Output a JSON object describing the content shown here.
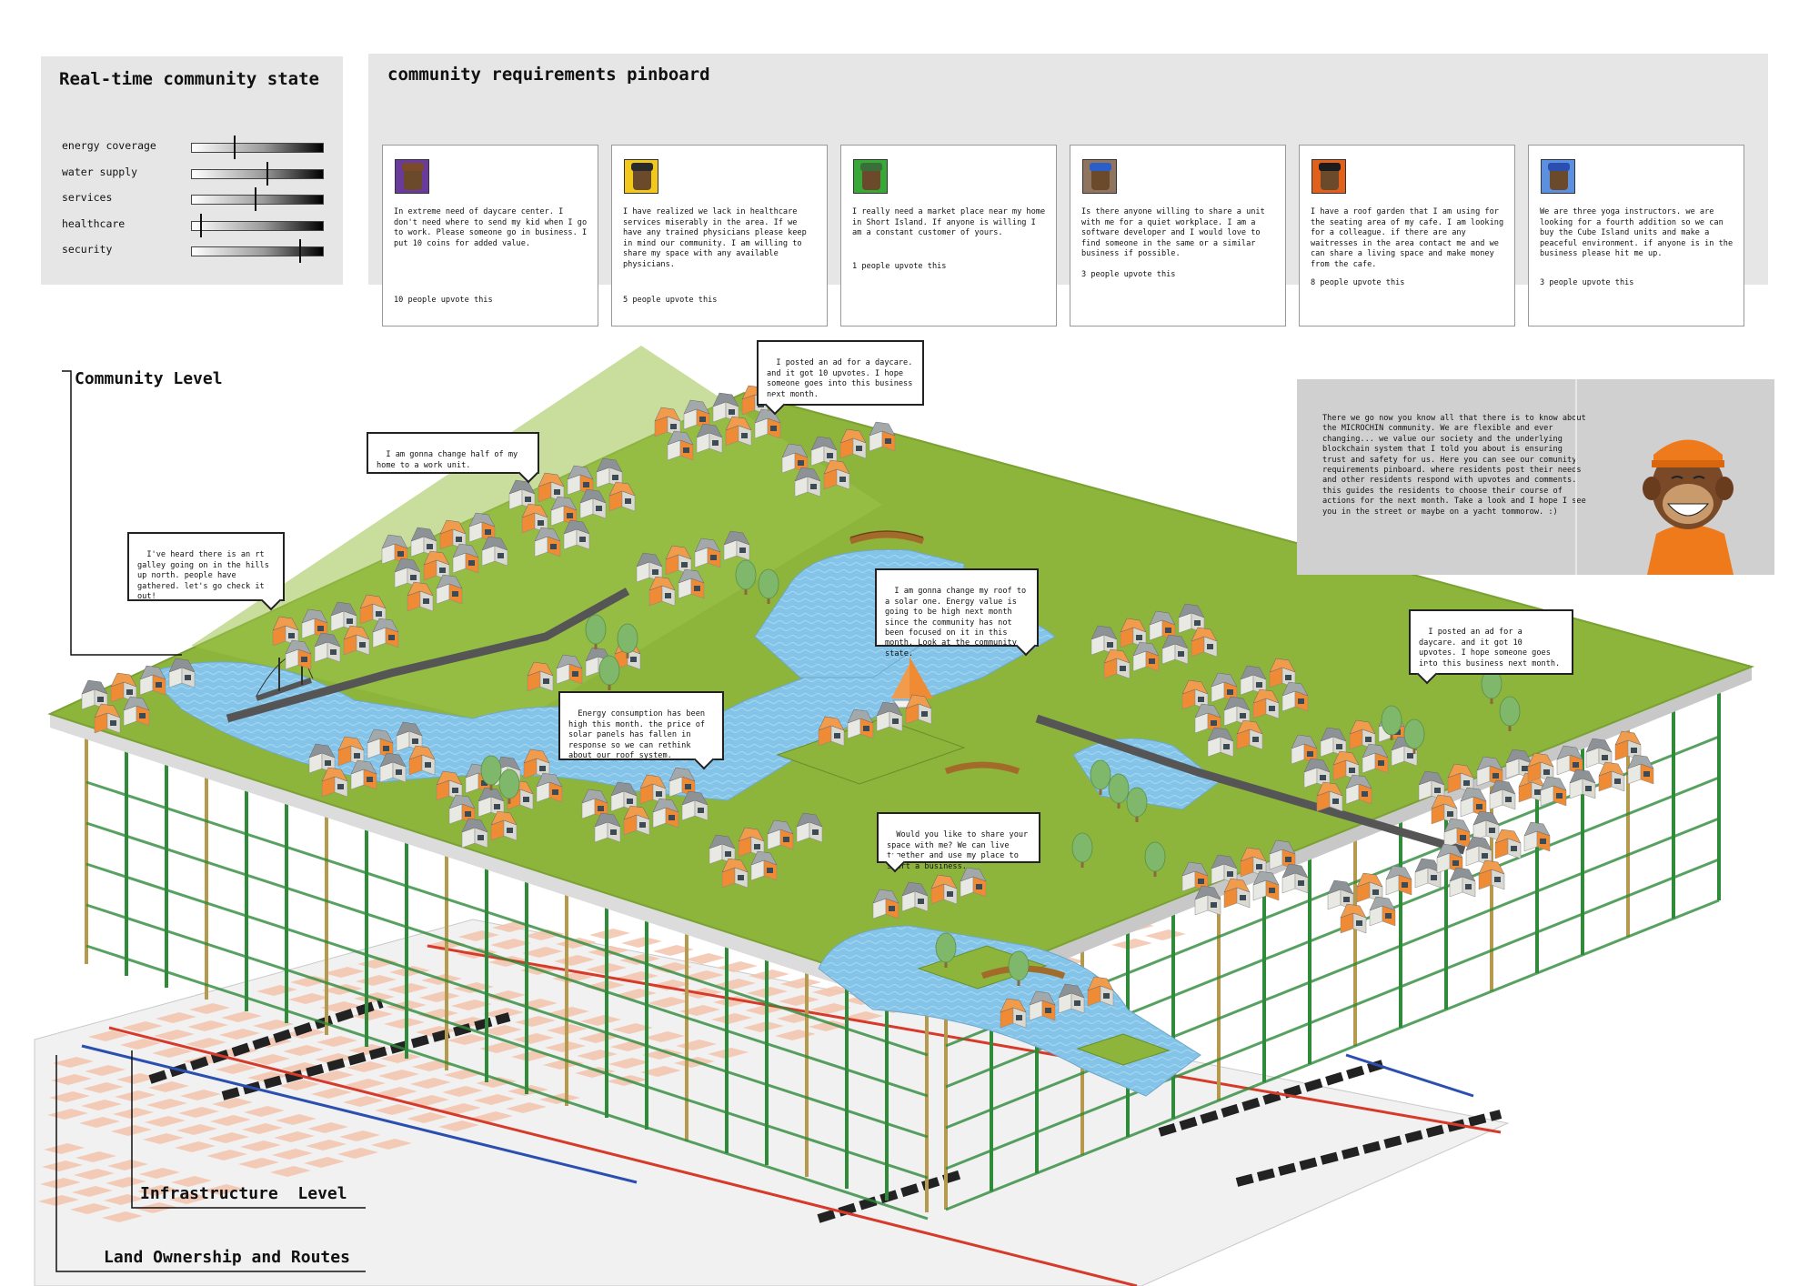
{
  "state_panel": {
    "title": "Real-time community state",
    "meters": [
      {
        "label": "energy coverage",
        "value": 0.32
      },
      {
        "label": "water supply",
        "value": 0.57
      },
      {
        "label": "services",
        "value": 0.48
      },
      {
        "label": "healthcare",
        "value": 0.06
      },
      {
        "label": "security",
        "value": 0.82
      }
    ]
  },
  "pinboard": {
    "title": "community requirements pinboard",
    "cards": [
      {
        "avatar": "ape-avatar-purple",
        "bg": "#6a3a9c",
        "hat": "#7a4a2a",
        "text": "In extreme need of daycare center. I don't need where to send my kid when I go to work. Please someone go in business. I put 10 coins for added value.",
        "votes": "10 people upvote this"
      },
      {
        "avatar": "ape-avatar-yellow",
        "bg": "#f2c81c",
        "hat": "#2b2b2b",
        "text": "I have realized we lack in healthcare services miserably in the area. If we have any trained physicians please keep in mind our community. I am willing to share my space with any available physicians.",
        "votes": "5 people upvote this"
      },
      {
        "avatar": "ape-avatar-green",
        "bg": "#38a838",
        "hat": "#3a6e3a",
        "text": "I really need a market place near my home in Short Island. If anyone is willing I am a constant customer of yours.",
        "votes": "1 people upvote this"
      },
      {
        "avatar": "ape-avatar-brown",
        "bg": "#8f7560",
        "hat": "#2a5ec8",
        "text": "Is there anyone willing to share a unit with me for a quiet workplace. I am a software developer and I would love to find someone in the same or a similar business if possible.",
        "votes": "3 people upvote this"
      },
      {
        "avatar": "ape-avatar-orange",
        "bg": "#e0601c",
        "hat": "#1c1c1c",
        "text": "I have a roof garden that I am using for the seating area of my cafe. I am looking for a colleague. if there are any waitresses in the area contact me and we can share a living space and make money from the cafe.",
        "votes": "8 people upvote this"
      },
      {
        "avatar": "ape-avatar-blue",
        "bg": "#5b8fe0",
        "hat": "#2a4fb0",
        "text": "We are three yoga instructors. we are looking for a fourth addition so we can buy the Cube Island units and make a peaceful environment. if anyone is in the business please hit me up.",
        "votes": "3 people upvote this"
      }
    ]
  },
  "levels": {
    "community": "Community Level",
    "infrastructure": "Infrastructure  Level",
    "land": "Land Ownership and Routes"
  },
  "bubbles": [
    {
      "text": "I posted an ad for a daycare. and it got 10 upvotes. I hope someone goes into this business next month."
    },
    {
      "text": "I am gonna change half of my home to a work unit."
    },
    {
      "text": "I've heard there is an rt galley going on in the hills up north. people have gathered. let's go check it out!"
    },
    {
      "text": "I am gonna change my roof to a solar one. Energy value is going to be high next month since the community has not been focused on it in this month. Look at the community state."
    },
    {
      "text": "Energy consumption has been high this month. the price of solar panels has fallen in response so we can rethink about our roof system."
    },
    {
      "text": "I posted an ad for a daycare. and it got 10 upvotes. I hope someone goes into this business next month."
    },
    {
      "text": "Would you like to share your space with me? We can live together and use my place to start a business."
    }
  ],
  "info": {
    "text": "There we go now you know all that there is to know about the MICROCHIN community. We are flexible and ever changing... we value our society and the underlying blockchain system that I told you about is ensuring trust and safety for us. Here you can see our comunity requirements pinboard. where residents post their needs and other residents respond with upvotes and comments. this guides the residents to choose their course of actions for the next month. Take a look and I hope I see you in the street or maybe on a yacht tommorow. :)",
    "avatar": "ape-guide-portrait"
  },
  "colors": {
    "grass": "#8db53c",
    "grass_dark": "#6a8e2a",
    "water": "#7fc0e6",
    "house_white": "#e9e9e4",
    "house_orange": "#ef8a35",
    "roof_grey": "#8d9296",
    "pillar_green": "#2f8a3a",
    "pillar_tan": "#b59a4e",
    "parcel_pink": "#f3c3ab",
    "route_red": "#d63a2a",
    "route_blue": "#2a4fb0",
    "road_black": "#222222"
  }
}
